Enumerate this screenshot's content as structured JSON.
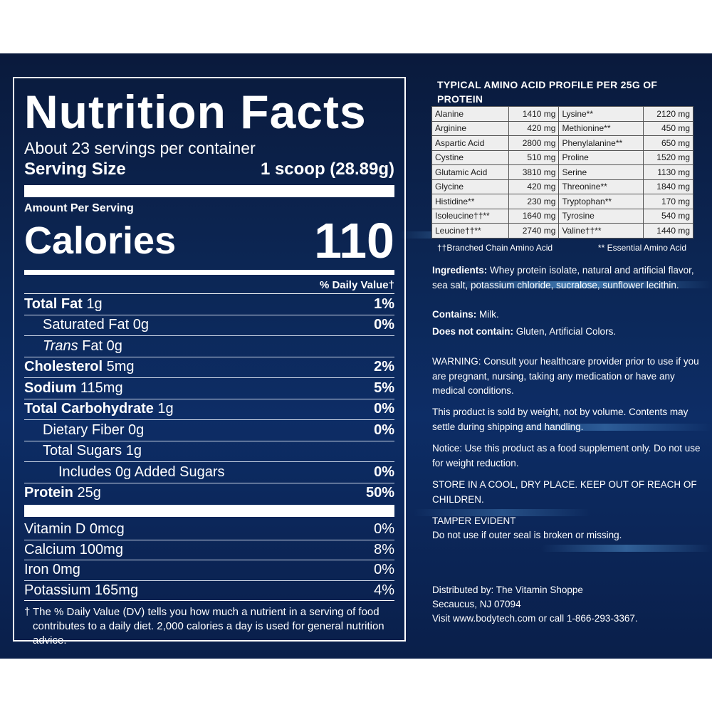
{
  "nutrition": {
    "title": "Nutrition Facts",
    "servings_per_container": "About 23 servings per container",
    "serving_size_label": "Serving Size",
    "serving_size_value": "1 scoop (28.89g)",
    "amount_per_serving": "Amount Per Serving",
    "calories_label": "Calories",
    "calories_value": "110",
    "daily_value_header": "% Daily Value†",
    "rows": [
      {
        "label_bold": "Total Fat",
        "label": " 1g",
        "pct": "1%"
      },
      {
        "label_bold": "",
        "label": "Saturated Fat 0g",
        "pct": "0%"
      },
      {
        "label_italic": "Trans",
        "label": " Fat 0g",
        "pct": ""
      },
      {
        "label_bold": "Cholesterol",
        "label": " 5mg",
        "pct": "2%"
      },
      {
        "label_bold": "Sodium",
        "label": " 115mg",
        "pct": "5%"
      },
      {
        "label_bold": "Total Carbohydrate",
        "label": " 1g",
        "pct": "0%"
      },
      {
        "label_bold": "",
        "label": "Dietary Fiber 0g",
        "pct": "0%"
      },
      {
        "label_bold": "",
        "label": "Total Sugars 1g",
        "pct": ""
      },
      {
        "label_bold": "",
        "label": "Includes 0g Added Sugars",
        "pct": "0%"
      },
      {
        "label_bold": "Protein",
        "label": " 25g",
        "pct": "50%"
      }
    ],
    "vitamins": [
      {
        "label": "Vitamin D 0mcg",
        "pct": "0%"
      },
      {
        "label": "Calcium 100mg",
        "pct": "8%"
      },
      {
        "label": "Iron 0mg",
        "pct": "0%"
      },
      {
        "label": "Potassium 165mg",
        "pct": "4%"
      }
    ],
    "footnote_mark": "†",
    "footnote": "The % Daily Value (DV) tells you how much a nutrient in a serving of food contributes to a daily diet. 2,000 calories a day is used for general nutrition advice."
  },
  "amino": {
    "title": "TYPICAL AMINO ACID PROFILE PER 25G OF PROTEIN",
    "rows": [
      [
        "Alanine",
        "1410 mg",
        "Lysine**",
        "2120 mg"
      ],
      [
        "Arginine",
        "420 mg",
        "Methionine**",
        "450 mg"
      ],
      [
        "Aspartic Acid",
        "2800 mg",
        "Phenylalanine**",
        "650 mg"
      ],
      [
        "Cystine",
        "510 mg",
        "Proline",
        "1520 mg"
      ],
      [
        "Glutamic Acid",
        "3810 mg",
        "Serine",
        "1130 mg"
      ],
      [
        "Glycine",
        "420 mg",
        "Threonine**",
        "1840 mg"
      ],
      [
        "Histidine**",
        "230 mg",
        "Tryptophan**",
        "170 mg"
      ],
      [
        "Isoleucine††**",
        "1640 mg",
        "Tyrosine",
        "540 mg"
      ],
      [
        "Leucine††**",
        "2740 mg",
        "Valine††**",
        "1440 mg"
      ]
    ],
    "legend_bcaa": "††Branched Chain Amino Acid",
    "legend_essential": "** Essential Amino Acid"
  },
  "info": {
    "ingredients_label": "Ingredients:",
    "ingredients_text": "Whey protein isolate, natural and artificial flavor, sea salt, potassium chloride, sucralose, sunflower lecithin.",
    "contains_label": "Contains:",
    "contains_text": "Milk.",
    "not_contain_label": "Does not contain:",
    "not_contain_text": "Gluten, Artificial Colors.",
    "warning": "WARNING: Consult your healthcare provider prior to use if you are pregnant, nursing, taking any medication or have any medical conditions.",
    "weight": "This product is sold by weight, not by volume. Contents may settle during shipping and handling.",
    "notice": "Notice: Use this product as a food supplement only. Do not use for weight reduction.",
    "store": "STORE IN A COOL, DRY PLACE. KEEP OUT OF REACH OF CHILDREN.",
    "tamper_title": "TAMPER EVIDENT",
    "tamper_text": "Do not use if outer seal is broken or missing.",
    "distributed": "Distributed by: The Vitamin Shoppe",
    "address": "Secaucus, NJ 07094",
    "visit": "Visit www.bodytech.com or call 1-866-293-3367."
  }
}
